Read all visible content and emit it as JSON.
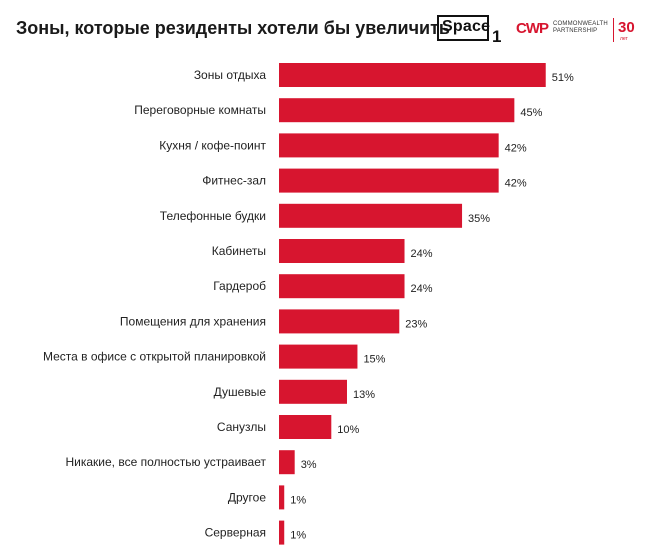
{
  "header": {
    "title": "Зоны, которые резиденты хотели бы увеличить",
    "space_logo_text": "Space",
    "space_logo_digit": "1",
    "cwp_mark": "CWP",
    "cwp_name_line1": "COMMONWEALTH",
    "cwp_name_line2": "PARTNERSHIP",
    "cwp_years": "30",
    "cwp_years_sub": "лет"
  },
  "colors": {
    "bar": "#d7152f",
    "text": "#222222"
  },
  "chart_data": {
    "type": "bar",
    "orientation": "horizontal",
    "title": "Зоны, которые резиденты хотели бы увеличить",
    "categories": [
      "Зоны отдыха",
      "Переговорные комнаты",
      "Кухня / кофе-поинт",
      "Фитнес-зал",
      "Телефонные будки",
      "Кабинеты",
      "Гардероб",
      "Помещения для хранения",
      "Места в офисе с открытой планировкой",
      "Душевые",
      "Санузлы",
      "Никакие, все полностью устраивает",
      "Другое",
      "Серверная"
    ],
    "values": [
      51,
      45,
      42,
      42,
      35,
      24,
      24,
      23,
      15,
      13,
      10,
      3,
      1,
      1
    ],
    "value_labels": [
      "51%",
      "45%",
      "42%",
      "42%",
      "35%",
      "24%",
      "24%",
      "23%",
      "15%",
      "13%",
      "10%",
      "3%",
      "1%",
      "1%"
    ],
    "unit": "%",
    "grid": false,
    "legend": "none"
  }
}
